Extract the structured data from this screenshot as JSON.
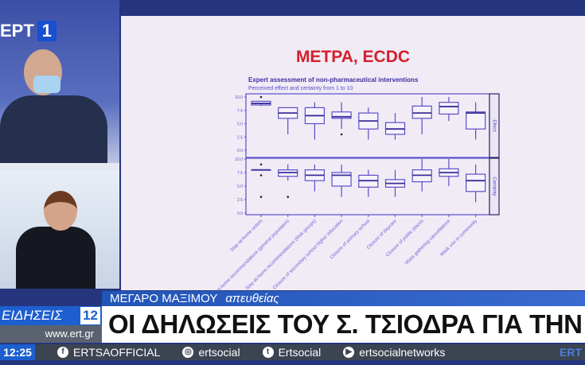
{
  "channel": {
    "logo_text": "ΕΡΤ",
    "logo_number": "1"
  },
  "slide": {
    "title": "ΜΕΤΡΑ, ECDC"
  },
  "chart_data": {
    "type": "box",
    "title": "Expert assessment of non-pharmaceutical interventions",
    "subtitle": "Perceived effect and certainty from 1 to 10",
    "ylim": [
      0,
      10
    ],
    "yticks": [
      "0.0",
      "2.5",
      "5.0",
      "7.5",
      "10.0"
    ],
    "categories": [
      "Stay-at-home orders",
      "Stay-at-home recommendations (general population)",
      "Stay-at-home recommendations (Risk groups)",
      "Closure of secondary school higher education",
      "Closure of primary school",
      "Closure of daycare",
      "Closure of public places",
      "Mass gathering cancellations",
      "Mask use in community"
    ],
    "facets": [
      {
        "name": "Effect",
        "boxes": [
          {
            "low": 8.3,
            "q1": 8.5,
            "median": 8.8,
            "q3": 9.2,
            "high": 9.2,
            "outliers": [
              10
            ]
          },
          {
            "low": 3,
            "q1": 6,
            "median": 7,
            "q3": 8,
            "high": 8,
            "outliers": []
          },
          {
            "low": 2,
            "q1": 5,
            "median": 6.5,
            "q3": 8,
            "high": 9,
            "outliers": []
          },
          {
            "low": 4,
            "q1": 6,
            "median": 6.3,
            "q3": 7.2,
            "high": 9,
            "outliers": [
              3
            ]
          },
          {
            "low": 2,
            "q1": 4,
            "median": 5.5,
            "q3": 7,
            "high": 8,
            "outliers": []
          },
          {
            "low": 2,
            "q1": 3,
            "median": 4,
            "q3": 5.2,
            "high": 7,
            "outliers": []
          },
          {
            "low": 3,
            "q1": 6,
            "median": 7,
            "q3": 8.3,
            "high": 10,
            "outliers": []
          },
          {
            "low": 5.5,
            "q1": 6.8,
            "median": 8.2,
            "q3": 9,
            "high": 10,
            "outliers": []
          },
          {
            "low": 2,
            "q1": 4,
            "median": 7,
            "q3": 7.2,
            "high": 9,
            "outliers": []
          }
        ]
      },
      {
        "name": "Certainty",
        "boxes": [
          {
            "low": 8,
            "q1": 8,
            "median": 8,
            "q3": 8,
            "high": 8,
            "outliers": [
              9,
              7,
              3
            ]
          },
          {
            "low": 6,
            "q1": 6.8,
            "median": 7.5,
            "q3": 8,
            "high": 9,
            "outliers": [
              3
            ]
          },
          {
            "low": 4,
            "q1": 6,
            "median": 7,
            "q3": 8,
            "high": 9,
            "outliers": []
          },
          {
            "low": 3,
            "q1": 5,
            "median": 7,
            "q3": 7.5,
            "high": 9,
            "outliers": []
          },
          {
            "low": 3,
            "q1": 4.8,
            "median": 6,
            "q3": 7,
            "high": 8,
            "outliers": []
          },
          {
            "low": 3,
            "q1": 4.8,
            "median": 5.5,
            "q3": 6.2,
            "high": 8,
            "outliers": []
          },
          {
            "low": 4,
            "q1": 5.8,
            "median": 7,
            "q3": 8,
            "high": 10,
            "outliers": []
          },
          {
            "low": 5,
            "q1": 6.8,
            "median": 7.5,
            "q3": 8.2,
            "high": 10,
            "outliers": []
          },
          {
            "low": 2,
            "q1": 4,
            "median": 6,
            "q3": 7.2,
            "high": 9,
            "outliers": []
          }
        ]
      }
    ],
    "color": "#5a4fc8"
  },
  "ticker": {
    "location": "ΜΕΓΑΡΟ ΜΑΞΙΜΟΥ",
    "live": "απευθείας",
    "headline": "ΟΙ ΔΗΛΩΣΕΙΣ ΤΟΥ Σ. ΤΣΙΟΔΡΑ ΓΙΑ ΤΗΝ ΠΑΝΔΗΜ"
  },
  "brand": {
    "label": "ΕΙΔΗΣΕΙΣ",
    "number": "12",
    "site": "www.ert.gr"
  },
  "bottom_bar": {
    "clock": "12:25",
    "socials": [
      {
        "icon": "facebook-icon",
        "glyph": "f",
        "label": "ERTSAOFFICIAL"
      },
      {
        "icon": "instagram-icon",
        "glyph": "◎",
        "label": "ertsocial"
      },
      {
        "icon": "twitter-icon",
        "glyph": "t",
        "label": "Ertsocial"
      },
      {
        "icon": "youtube-icon",
        "glyph": "▶",
        "label": "ertsocialnetworks"
      }
    ],
    "ert_mark": "ERT"
  }
}
